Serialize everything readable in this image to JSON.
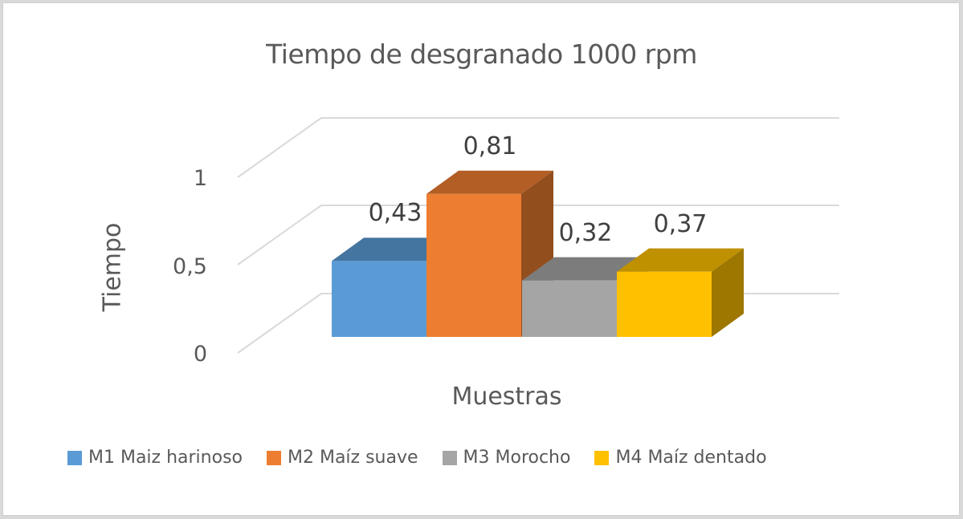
{
  "chart_data": {
    "type": "bar",
    "variant": "3d-clustered-column",
    "title": "Tiempo de desgranado 1000 rpm",
    "xlabel": "Muestras",
    "ylabel": "Tiempo",
    "ylim": [
      0,
      1
    ],
    "yticks": [
      "0",
      "0,5",
      "1"
    ],
    "grid": true,
    "legend_position": "bottom",
    "series": [
      {
        "name": "M1 Maiz harinoso",
        "value": 0.43,
        "label": "0,43",
        "color": "#5b9bd5"
      },
      {
        "name": "M2 Maíz suave",
        "value": 0.81,
        "label": "0,81",
        "color": "#ed7d31"
      },
      {
        "name": "M3 Morocho",
        "value": 0.32,
        "label": "0,32",
        "color": "#a5a5a5"
      },
      {
        "name": "M4 Maíz dentado",
        "value": 0.37,
        "label": "0,37",
        "color": "#ffc000"
      }
    ]
  }
}
